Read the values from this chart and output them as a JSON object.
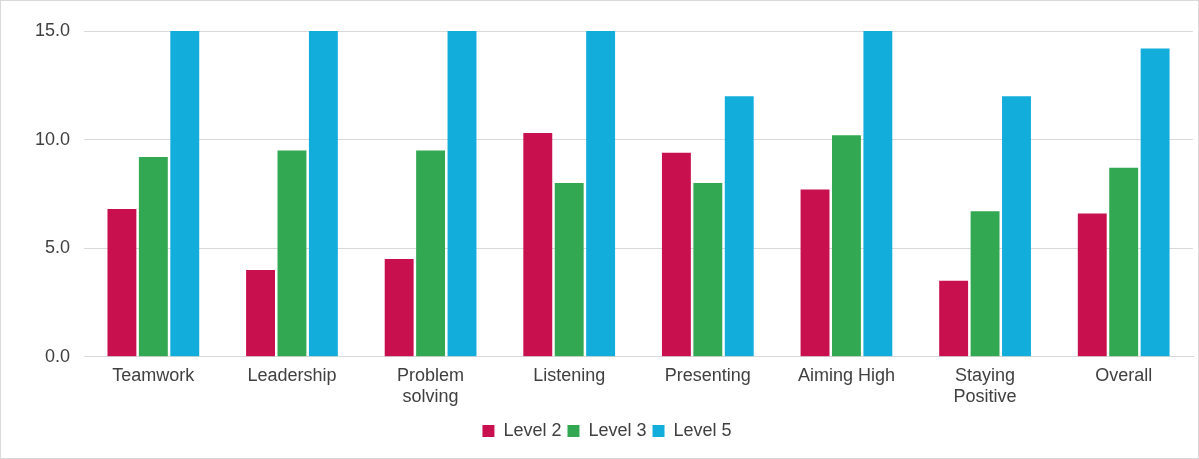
{
  "chart_data": {
    "type": "bar",
    "categories": [
      "Teamwork",
      "Leadership",
      "Problem solving",
      "Listening",
      "Presenting",
      "Aiming High",
      "Staying Positive",
      "Overall"
    ],
    "series": [
      {
        "name": "Level 2",
        "color": "#c8104e",
        "values": [
          6.8,
          4.0,
          4.5,
          10.3,
          9.4,
          7.7,
          3.5,
          6.6
        ]
      },
      {
        "name": "Level 3",
        "color": "#33a852",
        "values": [
          9.2,
          9.5,
          9.5,
          8.0,
          8.0,
          10.2,
          6.7,
          8.7
        ]
      },
      {
        "name": "Level 5",
        "color": "#13addc",
        "values": [
          15.0,
          15.0,
          15.0,
          15.0,
          12.0,
          15.0,
          12.0,
          14.2
        ]
      }
    ],
    "ylim": [
      0,
      15
    ],
    "yticks": [
      {
        "value": 0,
        "label": "0.0"
      },
      {
        "value": 5,
        "label": "5.0"
      },
      {
        "value": 10,
        "label": "10.0"
      },
      {
        "value": 15,
        "label": "15.0"
      }
    ],
    "grid": "y",
    "legend": "bottom"
  }
}
